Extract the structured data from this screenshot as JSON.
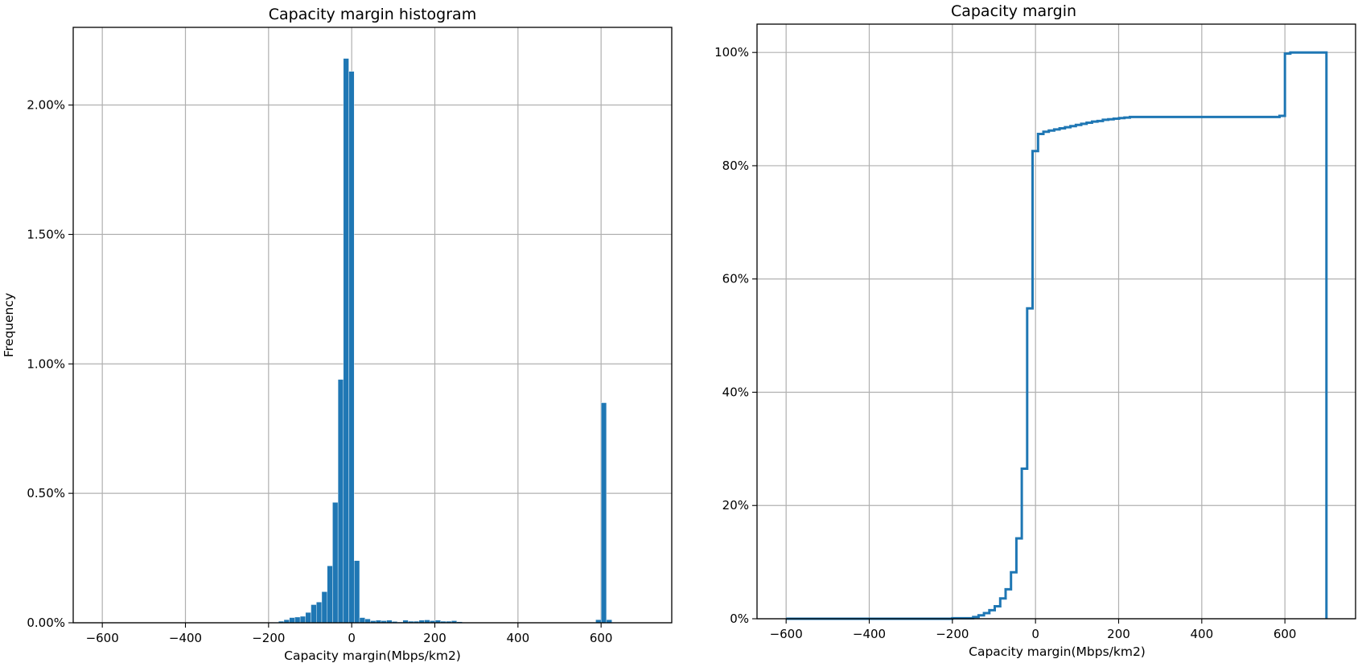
{
  "chart_data": [
    {
      "type": "bar",
      "subtype": "histogram",
      "title": "Capacity margin histogram",
      "xlabel": "Capacity margin(Mbps/km2)",
      "ylabel": "Frequency",
      "xlim": [
        -670,
        770
      ],
      "ylim": [
        0,
        2.3
      ],
      "xticks": [
        -600,
        -400,
        -200,
        0,
        200,
        400,
        600
      ],
      "xtick_labels": [
        "−600",
        "−400",
        "−200",
        "0",
        "200",
        "400",
        "600"
      ],
      "yticks": [
        0,
        0.5,
        1.0,
        1.5,
        2.0
      ],
      "ytick_labels": [
        "0.00%",
        "0.50%",
        "1.00%",
        "1.50%",
        "2.00%"
      ],
      "grid": true,
      "bin_width": 13,
      "bin_left_edges": [
        -189,
        -176,
        -163,
        -150,
        -137,
        -124,
        -111,
        -98,
        -85,
        -72,
        -59,
        -46,
        -33,
        -20,
        -7,
        6,
        19,
        32,
        45,
        58,
        71,
        84,
        97,
        110,
        123,
        136,
        149,
        162,
        175,
        188,
        201,
        214,
        227,
        240,
        253,
        587,
        600,
        613
      ],
      "values_percent": [
        0.002,
        0.006,
        0.012,
        0.02,
        0.022,
        0.025,
        0.04,
        0.07,
        0.08,
        0.12,
        0.22,
        0.465,
        0.94,
        2.18,
        2.13,
        0.24,
        0.02,
        0.015,
        0.008,
        0.01,
        0.008,
        0.01,
        0.005,
        0.003,
        0.01,
        0.006,
        0.006,
        0.01,
        0.011,
        0.008,
        0.01,
        0.006,
        0.006,
        0.008,
        0.004,
        0.012,
        0.85,
        0.012
      ]
    },
    {
      "type": "line",
      "subtype": "cumulative step",
      "title": "Capacity margin",
      "xlabel": "Capacity margin(Mbps/km2)",
      "ylabel": "",
      "xlim": [
        -670,
        770
      ],
      "ylim": [
        0,
        1.05
      ],
      "xticks": [
        -600,
        -400,
        -200,
        0,
        200,
        400,
        600
      ],
      "xtick_labels": [
        "−600",
        "−400",
        "−200",
        "0",
        "200",
        "400",
        "600"
      ],
      "yticks": [
        0,
        0.2,
        0.4,
        0.6,
        0.8,
        1.0
      ],
      "ytick_labels": [
        "0%",
        "20%",
        "40%",
        "60%",
        "80%",
        "100%"
      ],
      "grid": true,
      "x": [
        -600,
        -200,
        -150,
        -137,
        -124,
        -111,
        -98,
        -85,
        -72,
        -59,
        -46,
        -33,
        -20,
        -7,
        6,
        19,
        32,
        45,
        58,
        71,
        84,
        97,
        110,
        123,
        136,
        149,
        162,
        175,
        188,
        201,
        214,
        227,
        240,
        253,
        587,
        600,
        613,
        700,
        700
      ],
      "y": [
        0,
        0.0008,
        0.003,
        0.006,
        0.01,
        0.015,
        0.022,
        0.036,
        0.052,
        0.082,
        0.142,
        0.265,
        0.548,
        0.826,
        0.856,
        0.86,
        0.862,
        0.864,
        0.866,
        0.868,
        0.87,
        0.872,
        0.874,
        0.876,
        0.878,
        0.879,
        0.881,
        0.882,
        0.883,
        0.884,
        0.885,
        0.886,
        0.886,
        0.886,
        0.888,
        0.998,
        1.0,
        1.0,
        0
      ]
    }
  ]
}
